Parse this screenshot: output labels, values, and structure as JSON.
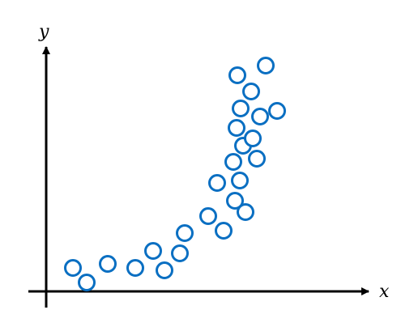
{
  "chart_data": {
    "type": "scatter",
    "x_label": "x",
    "y_label": "y",
    "color": "#0a6fc2",
    "xlim": [
      0,
      400
    ],
    "ylim": [
      0,
      300
    ],
    "x": [
      33,
      50,
      76,
      110,
      132,
      146,
      165,
      171,
      200,
      219,
      211,
      233,
      246,
      239,
      231,
      260,
      243,
      255,
      235,
      264,
      285,
      240,
      253,
      236,
      271
    ],
    "values": [
      29,
      11,
      34,
      29,
      50,
      26,
      47,
      72,
      93,
      75,
      134,
      112,
      98,
      137,
      160,
      164,
      180,
      189,
      202,
      216,
      223,
      226,
      247,
      267,
      279
    ]
  }
}
